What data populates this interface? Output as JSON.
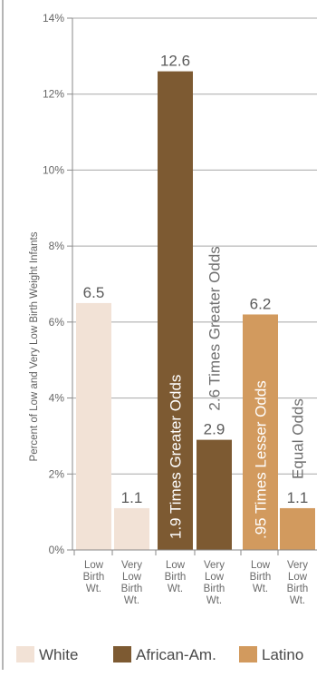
{
  "chart_data": {
    "type": "bar",
    "title": "",
    "xlabel": "",
    "ylabel": "Percent of Low and Very Low Birth Weight Infants",
    "ylim": [
      0,
      14
    ],
    "yticks": [
      "0%",
      "2%",
      "4%",
      "6%",
      "8%",
      "10%",
      "12%",
      "14%"
    ],
    "grid": true,
    "legend_placement": "bottom",
    "categories": [
      [
        "Low",
        "Birth",
        "Wt."
      ],
      [
        "Very",
        "Low",
        "Birth",
        "Wt."
      ],
      [
        "Low",
        "Birth",
        "Wt."
      ],
      [
        "Very",
        "Low",
        "Birth",
        "Wt."
      ],
      [
        "Low",
        "Birth",
        "Wt."
      ],
      [
        "Very",
        "Low",
        "Birth",
        "Wt."
      ]
    ],
    "bars": [
      {
        "group": "White",
        "category": "Low Birth Wt.",
        "value": 6.5,
        "label": "6.5",
        "color": "#f2e2d6"
      },
      {
        "group": "White",
        "category": "Very Low Birth Wt.",
        "value": 1.1,
        "label": "1.1",
        "color": "#f2e2d6"
      },
      {
        "group": "African-Am.",
        "category": "Low Birth Wt.",
        "value": 12.6,
        "label": "12.6",
        "color": "#7d5a32",
        "annotation": "1.9 Times Greater Odds",
        "annotation_inside": true
      },
      {
        "group": "African-Am.",
        "category": "Very Low Birth Wt.",
        "value": 2.9,
        "label": "2.9",
        "color": "#7d5a32",
        "annotation": "2.6 Times Greater Odds",
        "annotation_inside": false
      },
      {
        "group": "Latino",
        "category": "Low Birth Wt.",
        "value": 6.2,
        "label": "6.2",
        "color": "#d29a5e",
        "annotation": ".95 Times Lesser Odds",
        "annotation_inside": true
      },
      {
        "group": "Latino",
        "category": "Very Low Birth Wt.",
        "value": 1.1,
        "label": "1.1",
        "color": "#d29a5e",
        "annotation": "Equal Odds",
        "annotation_inside": false
      }
    ],
    "legend": [
      {
        "name": "White",
        "color": "#f2e2d6"
      },
      {
        "name": "African-Am.",
        "color": "#7d5a32"
      },
      {
        "name": "Latino",
        "color": "#d29a5e"
      }
    ]
  }
}
